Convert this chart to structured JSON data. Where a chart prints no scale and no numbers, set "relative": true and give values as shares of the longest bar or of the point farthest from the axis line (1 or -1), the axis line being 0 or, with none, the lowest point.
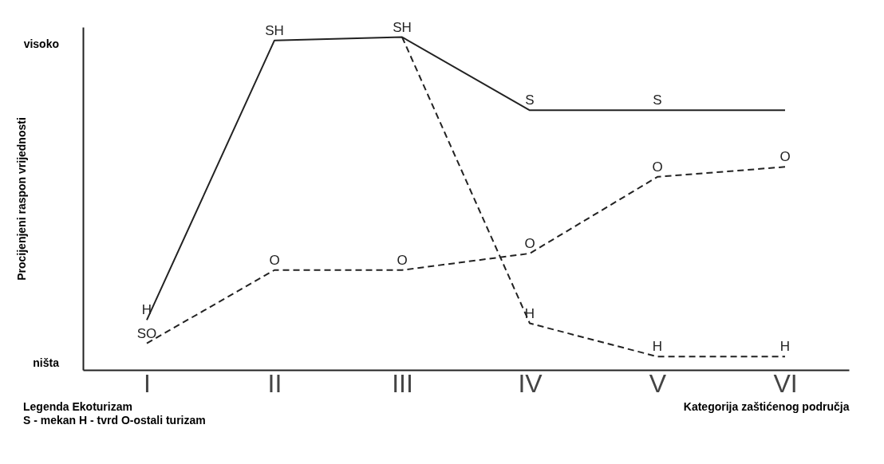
{
  "chart_data": {
    "type": "line",
    "relative": true,
    "xlabel": "Kategorija zaštićenog područja",
    "ylabel": "Procijenjeni raspon vrijednosti",
    "categories": [
      "I",
      "II",
      "III",
      "IV",
      "V",
      "VI"
    ],
    "grid": false,
    "marker": "none",
    "series": [
      {
        "color": "#222222",
        "line_style": "solid",
        "values": [
          0.15,
          0.99,
          1,
          0.78,
          0.78,
          0.78
        ]
      },
      {
        "color": "#222222",
        "line_style": "dashed",
        "values": [
          null,
          null,
          1,
          0.14,
          0.04,
          0.04
        ]
      },
      {
        "color": "#222222",
        "line_style": "dashed",
        "values": [
          0.08,
          0.3,
          0.3,
          0.35,
          0.58,
          0.61
        ]
      }
    ],
    "annotations": [
      "visoko",
      "ništa",
      {
        "text": "H",
        "x": "I",
        "y": 0.15
      },
      {
        "text": "SO",
        "x": "I",
        "y": 0.08
      },
      {
        "text": "SH",
        "x": "II",
        "y": 0.99
      },
      {
        "text": "SH",
        "x": "III",
        "y": 1
      },
      {
        "text": "S",
        "x": "IV",
        "y": 0.78
      },
      {
        "text": "S",
        "x": "V",
        "y": 0.78
      },
      {
        "text": "H",
        "x": "IV",
        "y": 0.14
      },
      {
        "text": "H",
        "x": "V",
        "y": 0.04
      },
      {
        "text": "H",
        "x": "VI",
        "y": 0.04
      },
      {
        "text": "O",
        "x": "II",
        "y": 0.3
      },
      {
        "text": "O",
        "x": "III",
        "y": 0.3
      },
      {
        "text": "O",
        "x": "IV",
        "y": 0.35
      },
      {
        "text": "O",
        "x": "V",
        "y": 0.58
      },
      {
        "text": "O",
        "x": "VI",
        "y": 0.61
      },
      "Legenda Ekoturizam",
      "S - mekan  H - tvrd  O-ostali turizam"
    ]
  }
}
